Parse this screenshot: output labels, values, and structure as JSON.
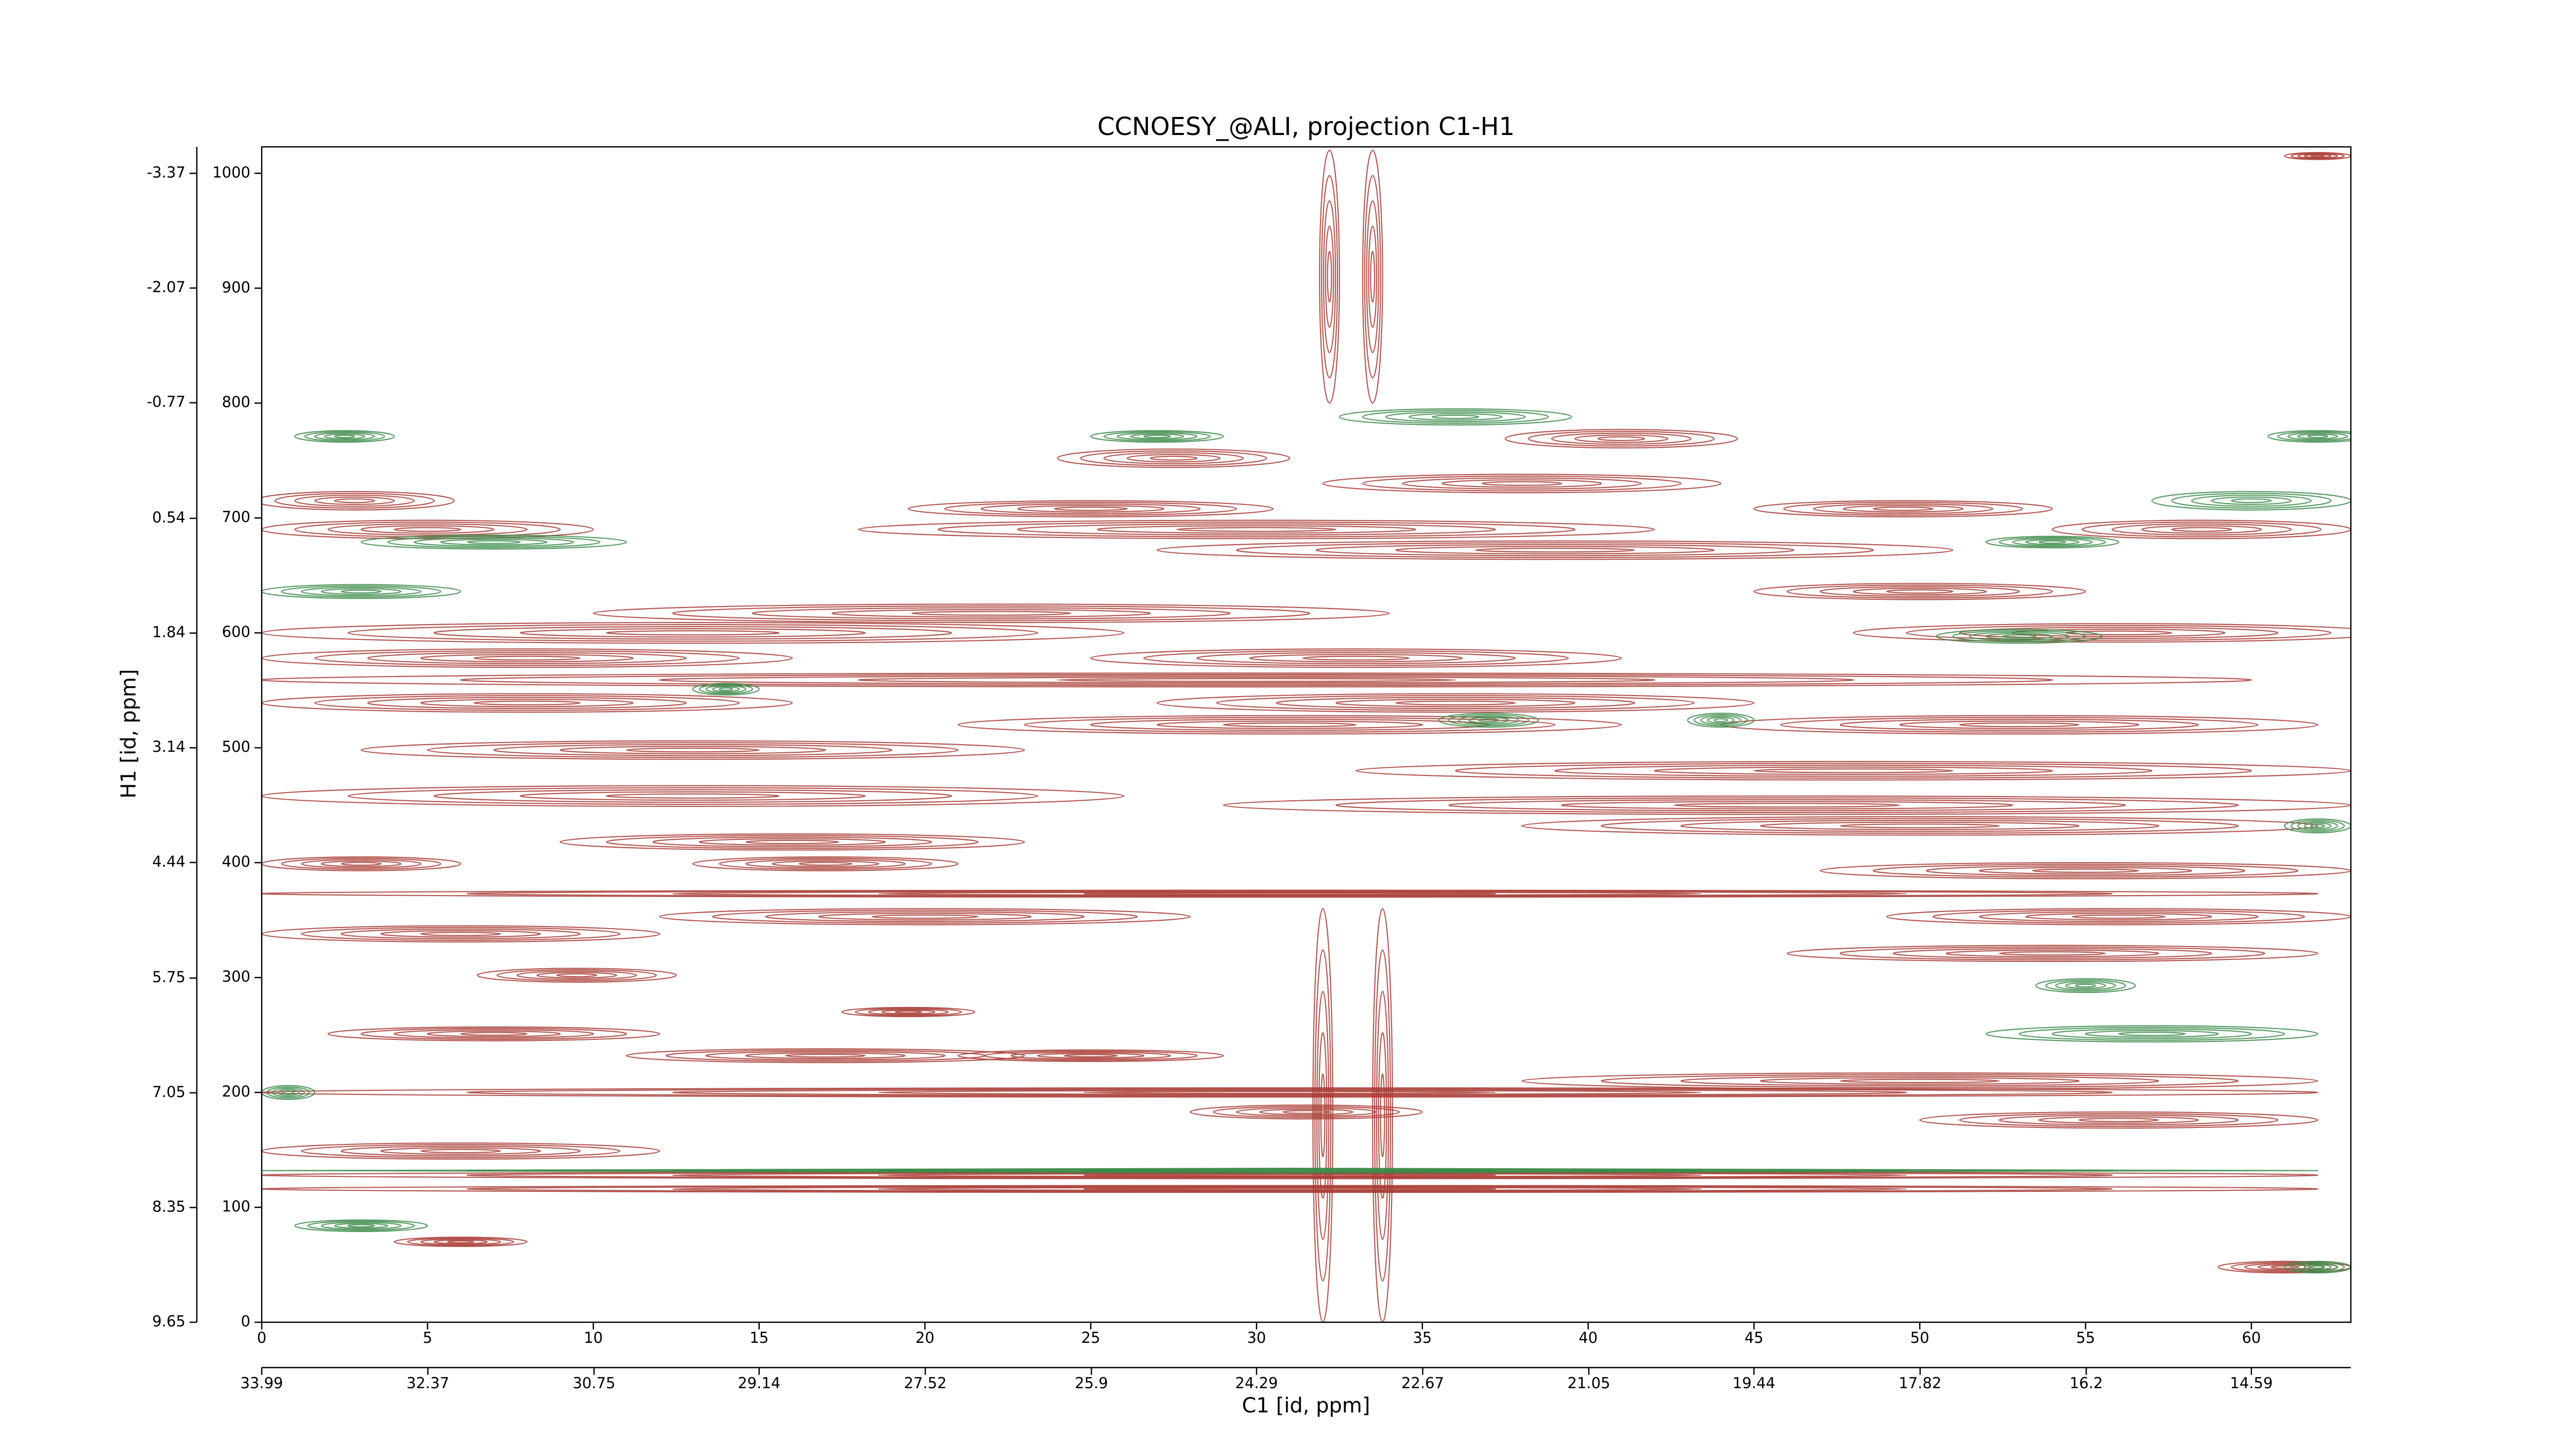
{
  "chart_data": {
    "type": "contour",
    "title": "CCNOESY_@ALI, projection C1-H1",
    "x_label": "C1 [id, ppm]",
    "y_label": "H1 [id, ppm]",
    "xlim": [
      0,
      63
    ],
    "xticks": [
      0,
      5,
      10,
      15,
      20,
      25,
      30,
      35,
      40,
      45,
      50,
      55,
      60
    ],
    "x2lim": [
      33.99,
      13.62
    ],
    "x2ticks": [
      33.99,
      32.37,
      30.75,
      29.14,
      27.52,
      25.9,
      24.29,
      22.67,
      21.05,
      19.44,
      17.82,
      16.2,
      14.59
    ],
    "ylim": [
      0,
      1023
    ],
    "yticks": [
      0,
      100,
      200,
      300,
      400,
      500,
      600,
      700,
      800,
      900,
      1000
    ],
    "y2lim": [
      9.65,
      -3.67
    ],
    "y2ticks": [
      9.65,
      8.35,
      7.05,
      5.75,
      4.44,
      3.14,
      1.84,
      0.54,
      -0.77,
      -2.07,
      -3.37
    ],
    "series": [
      {
        "color": "#a83a32",
        "x": [
          27.5,
          41,
          38,
          2.8,
          25,
          49.5,
          5,
          30,
          58.5,
          39,
          50,
          22,
          13,
          56,
          8,
          33,
          30,
          8,
          36,
          31,
          53,
          13,
          48,
          13,
          46,
          50,
          16,
          3,
          17,
          55,
          31,
          56,
          20,
          6,
          54,
          9.5,
          19.5,
          7,
          17,
          25,
          50,
          31,
          31.5,
          56,
          6,
          31,
          31,
          6,
          61,
          62,
          32.2,
          33.5,
          32,
          33.8
        ],
        "y": [
          752,
          769,
          730,
          715,
          708,
          708,
          690,
          690,
          690,
          672,
          636,
          617,
          600,
          600,
          578,
          578,
          559,
          539,
          539,
          520,
          520,
          498,
          480,
          458,
          450,
          432,
          418,
          399,
          399,
          393,
          373,
          353,
          353,
          338,
          321,
          302,
          270,
          251,
          232,
          232,
          210,
          200,
          183,
          176,
          149,
          128,
          116,
          70,
          48,
          1015,
          910,
          910,
          180,
          180
        ],
        "xw": [
          3.5,
          3.5,
          6,
          3,
          5.5,
          4.5,
          5,
          12,
          4.5,
          12,
          5,
          12,
          13,
          8,
          8,
          8,
          30,
          8,
          9,
          10,
          9,
          10,
          15,
          13,
          17,
          12,
          7,
          3,
          4,
          8,
          31,
          7,
          8,
          6,
          8,
          3,
          2,
          5,
          6,
          4,
          12,
          31,
          3.5,
          6,
          6,
          31,
          31,
          2,
          2,
          1,
          0.3,
          0.3,
          0.3,
          0.3
        ],
        "yw": [
          8,
          8,
          8,
          8,
          7,
          7,
          8,
          8,
          8,
          8,
          7,
          8,
          9,
          8,
          8,
          8,
          6,
          8,
          8,
          8,
          8,
          8,
          8,
          9,
          8,
          8,
          7,
          6,
          6,
          7,
          3,
          7,
          7,
          7,
          7,
          6,
          4,
          6,
          6,
          5,
          7,
          4,
          6,
          7,
          7,
          3,
          3,
          4,
          5,
          3,
          110,
          110,
          180,
          180
        ]
      },
      {
        "color": "#3a8a48",
        "x": [
          36,
          27,
          62,
          2.5,
          60,
          7,
          54,
          3,
          53,
          14,
          37,
          44,
          62,
          55,
          57,
          0.8,
          31,
          3,
          62
        ],
        "y": [
          788,
          771,
          771,
          771,
          715,
          679,
          679,
          636,
          597,
          551,
          524,
          524,
          432,
          293,
          251,
          200,
          132,
          84,
          48
        ],
        "xw": [
          3.5,
          2,
          1.5,
          1.5,
          3,
          4,
          2,
          3,
          2.5,
          1,
          1.5,
          1,
          1,
          1.5,
          5,
          0.8,
          31,
          2,
          1
        ],
        "yw": [
          7,
          5,
          5,
          5,
          8,
          6,
          5,
          6,
          6,
          5,
          6,
          6,
          6,
          6,
          7,
          6,
          2,
          5,
          5
        ]
      }
    ]
  }
}
